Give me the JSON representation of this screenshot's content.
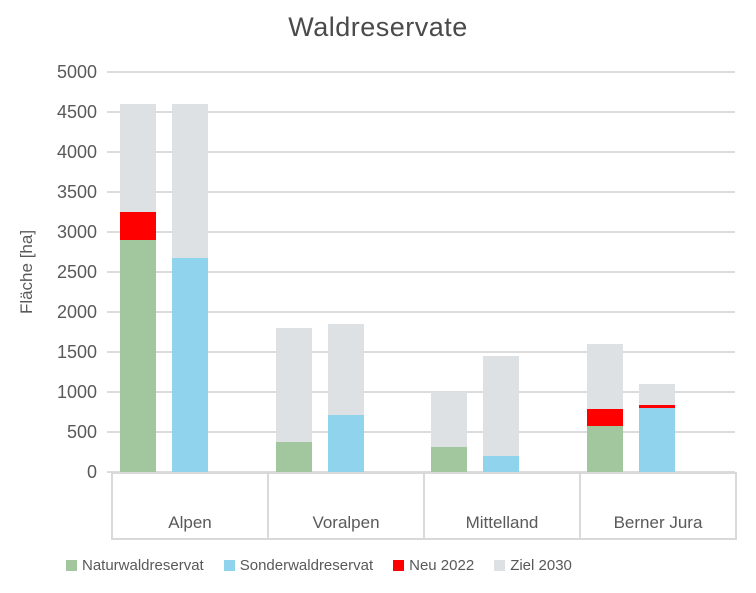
{
  "title": "Waldreservate",
  "y_axis": {
    "title": "Fläche [ha]"
  },
  "chart_data": {
    "type": "bar",
    "stacked": true,
    "clustered": true,
    "title": "Waldreservate",
    "xlabel": "",
    "ylabel": "Fläche [ha]",
    "ylim": [
      0,
      5000
    ],
    "yticks": [
      0,
      500,
      1000,
      1500,
      2000,
      2500,
      3000,
      3500,
      4000,
      4500,
      5000
    ],
    "grid": true,
    "legend_position": "bottom",
    "categories": [
      "Alpen",
      "Voralpen",
      "Mittelland",
      "Berner Jura"
    ],
    "legend": [
      "Naturwaldreservat",
      "Sonderwaldreservat",
      "Neu 2022",
      "Ziel 2030"
    ],
    "colors": {
      "Naturwaldreservat": "#A2C79F",
      "Sonderwaldreservat": "#8FD3EC",
      "Neu 2022": "#FF0000",
      "Ziel 2030": "#DEE1E4"
    },
    "text_color": "#595959",
    "gridline_color": "#DCDCDC",
    "bars": [
      {
        "category": "Alpen",
        "slot": 0,
        "stack_total": 4600,
        "segments": [
          {
            "series": "Naturwaldreservat",
            "value": 2900
          },
          {
            "series": "Neu 2022",
            "value": 350
          },
          {
            "series": "Ziel 2030",
            "value": 1350
          }
        ]
      },
      {
        "category": "Alpen",
        "slot": 1,
        "stack_total": 4600,
        "segments": [
          {
            "series": "Sonderwaldreservat",
            "value": 2670
          },
          {
            "series": "Ziel 2030",
            "value": 1930
          }
        ]
      },
      {
        "category": "Voralpen",
        "slot": 0,
        "stack_total": 1800,
        "segments": [
          {
            "series": "Naturwaldreservat",
            "value": 370
          },
          {
            "series": "Ziel 2030",
            "value": 1430
          }
        ]
      },
      {
        "category": "Voralpen",
        "slot": 1,
        "stack_total": 1850,
        "segments": [
          {
            "series": "Sonderwaldreservat",
            "value": 710
          },
          {
            "series": "Ziel 2030",
            "value": 1140
          }
        ]
      },
      {
        "category": "Mittelland",
        "slot": 0,
        "stack_total": 1000,
        "segments": [
          {
            "series": "Naturwaldreservat",
            "value": 310
          },
          {
            "series": "Ziel 2030",
            "value": 690
          }
        ]
      },
      {
        "category": "Mittelland",
        "slot": 1,
        "stack_total": 1450,
        "segments": [
          {
            "series": "Sonderwaldreservat",
            "value": 200
          },
          {
            "series": "Ziel 2030",
            "value": 1250
          }
        ]
      },
      {
        "category": "Berner Jura",
        "slot": 0,
        "stack_total": 1600,
        "segments": [
          {
            "series": "Naturwaldreservat",
            "value": 575
          },
          {
            "series": "Neu 2022",
            "value": 215
          },
          {
            "series": "Ziel 2030",
            "value": 810
          }
        ]
      },
      {
        "category": "Berner Jura",
        "slot": 1,
        "stack_total": 1100,
        "segments": [
          {
            "series": "Sonderwaldreservat",
            "value": 800
          },
          {
            "series": "Neu 2022",
            "value": 40
          },
          {
            "series": "Ziel 2030",
            "value": 260
          }
        ]
      }
    ]
  }
}
